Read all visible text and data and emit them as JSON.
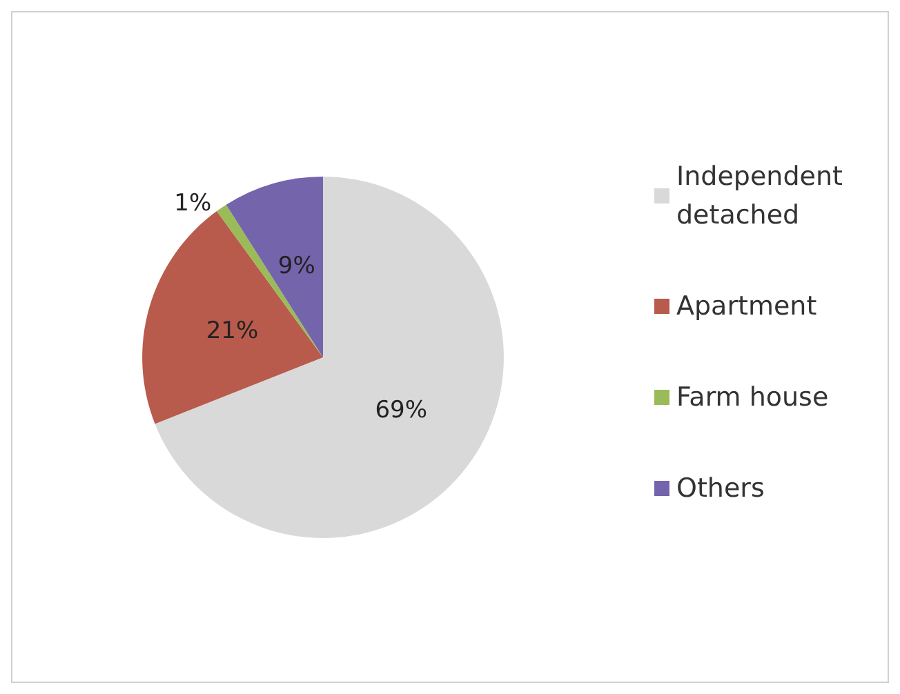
{
  "chart_data": {
    "type": "pie",
    "categories": [
      "Independent detached",
      "Apartment",
      "Farm house",
      "Others"
    ],
    "values": [
      69,
      21,
      1,
      9
    ],
    "colors": [
      "#d9d9d9",
      "#b85a4c",
      "#9bbb59",
      "#7464ac"
    ],
    "value_labels": [
      "69%",
      "21%",
      "1%",
      "9%"
    ],
    "legend": "right"
  }
}
